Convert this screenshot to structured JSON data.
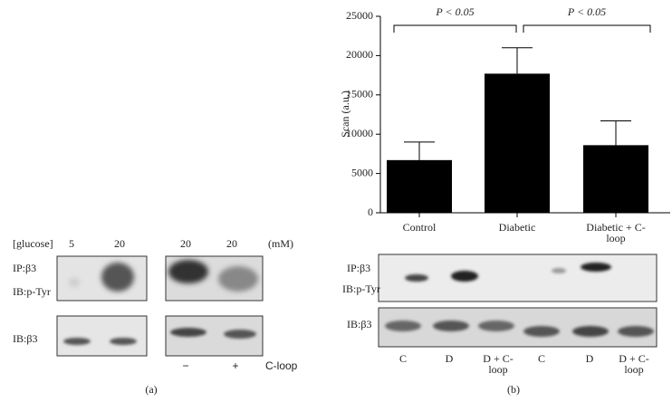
{
  "chart_data": {
    "type": "bar",
    "ylabel": "Scan (a.u.)",
    "categories": [
      "Control",
      "Diabetic",
      "Diabetic + C-loop"
    ],
    "values": [
      6700,
      17700,
      8600
    ],
    "errors": [
      2300,
      3300,
      3100
    ],
    "color": "#000000",
    "ylim": [
      0,
      25000
    ],
    "yticks": [
      0,
      5000,
      10000,
      15000,
      20000,
      25000
    ],
    "annotations": [
      "P < 0.05",
      "P < 0.05"
    ]
  },
  "panel_a": {
    "label": "(a)",
    "glucose_label": "[glucose]",
    "glucose_values": [
      "5",
      "20",
      "20",
      "20"
    ],
    "unit": "(mM)",
    "rows": [
      "IP:β3",
      "IB:p-Tyr",
      "IB:β3"
    ],
    "cloop_values": [
      "−",
      "+"
    ],
    "cloop_label": "C-loop"
  },
  "panel_b": {
    "label": "(b)",
    "rows": [
      "IP:β3",
      "IB:p-Tyr",
      "IB:β3"
    ],
    "lanes": [
      "C",
      "D",
      "D + C-loop",
      "C",
      "D",
      "D + C-loop"
    ]
  }
}
